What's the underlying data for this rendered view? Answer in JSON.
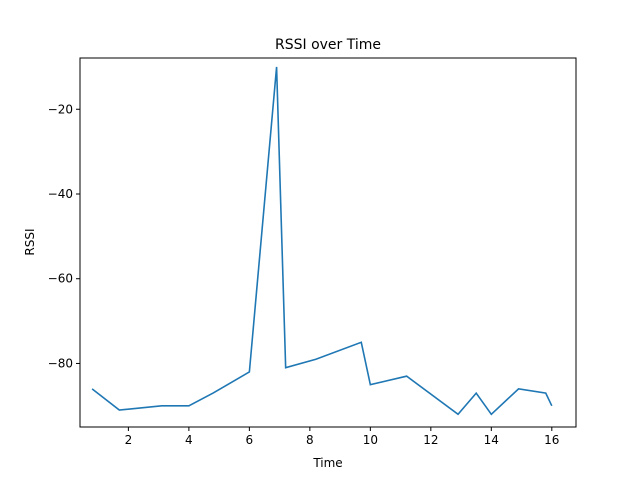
{
  "chart_data": {
    "type": "line",
    "title": "RSSI over Time",
    "xlabel": "Time",
    "ylabel": "RSSI",
    "xlim": [
      0.4,
      16.8
    ],
    "ylim": [
      -95.0,
      -7.9
    ],
    "x_ticks": [
      2,
      4,
      6,
      8,
      10,
      12,
      14,
      16
    ],
    "y_ticks": [
      -80,
      -60,
      -40,
      -20
    ],
    "x_tick_labels": [
      "2",
      "4",
      "6",
      "8",
      "10",
      "12",
      "14",
      "16"
    ],
    "y_tick_labels": [
      "−80",
      "−60",
      "−40",
      "−20"
    ],
    "grid": false,
    "legend": "none",
    "series": [
      {
        "color": "#1f77b4",
        "x": [
          0.8,
          1.7,
          3.1,
          4.0,
          4.8,
          6.0,
          6.9,
          7.2,
          8.2,
          9.7,
          10.0,
          11.2,
          12.9,
          13.5,
          13.8,
          14.0,
          14.9,
          15.8,
          16.0
        ],
        "y": [
          -86,
          -91,
          -90,
          -90,
          -87,
          -82,
          -10,
          -81,
          -79,
          -75,
          -85,
          -83,
          -92,
          -87,
          -90,
          -92,
          -86,
          -87,
          -90
        ]
      }
    ]
  }
}
